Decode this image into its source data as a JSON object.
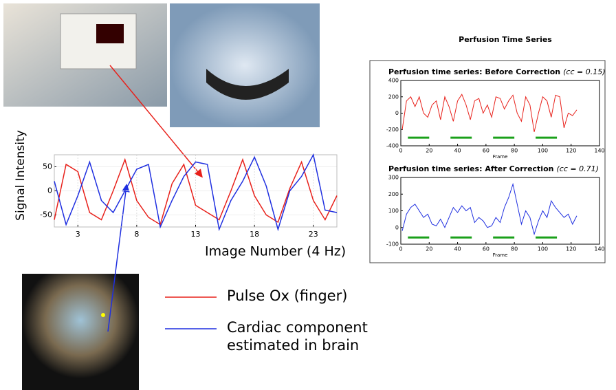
{
  "chart_data": [
    {
      "type": "line",
      "ylabel": "Signal Intensity",
      "xlabel": "Image Number (4 Hz)",
      "x": [
        1,
        2,
        3,
        4,
        5,
        6,
        7,
        8,
        9,
        10,
        11,
        12,
        13,
        14,
        15,
        16,
        17,
        18,
        19,
        20,
        21,
        22,
        23,
        24,
        25
      ],
      "xlim": [
        1,
        25
      ],
      "xticks": [
        3,
        8,
        13,
        18,
        23
      ],
      "ylim": [
        -75,
        75
      ],
      "yticks": [
        -50,
        0,
        50
      ],
      "grid": true,
      "series": [
        {
          "name": "Pulse Ox (finger)",
          "color": "#e8201a",
          "values": [
            -60,
            55,
            40,
            -45,
            -60,
            0,
            65,
            -20,
            -55,
            -70,
            15,
            55,
            -30,
            -45,
            -60,
            0,
            65,
            -10,
            -50,
            -65,
            5,
            60,
            -20,
            -60,
            -10
          ]
        },
        {
          "name": "Cardiac component estimated in brain",
          "color": "#1f2fe0",
          "values": [
            20,
            -70,
            -10,
            60,
            -20,
            -45,
            0,
            45,
            55,
            -75,
            -20,
            30,
            60,
            55,
            -80,
            -20,
            20,
            70,
            10,
            -80,
            0,
            30,
            75,
            -40,
            -45
          ]
        }
      ]
    },
    {
      "type": "line",
      "title": "Perfusion time series: Before Correction",
      "annotation": "(cc = 0.15)",
      "xlabel": "Frame",
      "x": [
        1,
        4,
        7,
        10,
        13,
        16,
        19,
        22,
        25,
        28,
        31,
        34,
        37,
        40,
        43,
        46,
        49,
        52,
        55,
        58,
        61,
        64,
        67,
        70,
        73,
        76,
        79,
        82,
        85,
        88,
        91,
        94,
        97,
        100,
        103,
        106,
        109,
        112,
        115,
        118,
        121,
        124
      ],
      "values": [
        -200,
        150,
        200,
        80,
        200,
        0,
        -50,
        100,
        150,
        -80,
        200,
        80,
        -100,
        150,
        230,
        100,
        -80,
        150,
        180,
        0,
        100,
        -50,
        200,
        180,
        50,
        150,
        220,
        0,
        -100,
        200,
        100,
        -230,
        0,
        200,
        150,
        -50,
        220,
        200,
        -180,
        0,
        -30,
        40
      ],
      "color": "#e8201a",
      "xlim": [
        0,
        140
      ],
      "xticks": [
        0,
        20,
        40,
        60,
        80,
        100,
        120,
        140
      ],
      "ylim": [
        -400,
        400
      ],
      "yticks": [
        -400,
        -200,
        0,
        200,
        400
      ],
      "blocks": [
        [
          5,
          20
        ],
        [
          35,
          50
        ],
        [
          65,
          80
        ],
        [
          95,
          110
        ]
      ],
      "block_level": -300,
      "block_color": "#1aa01a"
    },
    {
      "type": "line",
      "title": "Perfusion time series: After Correction",
      "annotation": "(cc = 0.71)",
      "xlabel": "Frame",
      "x": [
        1,
        4,
        7,
        10,
        13,
        16,
        19,
        22,
        25,
        28,
        31,
        34,
        37,
        40,
        43,
        46,
        49,
        52,
        55,
        58,
        61,
        64,
        67,
        70,
        73,
        76,
        79,
        82,
        85,
        88,
        91,
        94,
        97,
        100,
        103,
        106,
        109,
        112,
        115,
        118,
        121,
        124
      ],
      "values": [
        -20,
        80,
        120,
        140,
        100,
        60,
        80,
        20,
        10,
        50,
        0,
        60,
        120,
        90,
        130,
        100,
        120,
        30,
        60,
        40,
        0,
        10,
        60,
        30,
        120,
        180,
        260,
        140,
        20,
        100,
        60,
        -40,
        40,
        100,
        60,
        160,
        120,
        90,
        60,
        80,
        20,
        70
      ],
      "color": "#1f2fe0",
      "xlim": [
        0,
        140
      ],
      "xticks": [
        0,
        20,
        40,
        60,
        80,
        100,
        120,
        140
      ],
      "ylim": [
        -100,
        300
      ],
      "yticks": [
        -100,
        0,
        100,
        200,
        300
      ],
      "blocks": [
        [
          5,
          20
        ],
        [
          35,
          50
        ],
        [
          65,
          80
        ],
        [
          95,
          110
        ]
      ],
      "block_level": -60,
      "block_color": "#1aa01a"
    }
  ],
  "panel_title": "Perfusion Time Series"
}
